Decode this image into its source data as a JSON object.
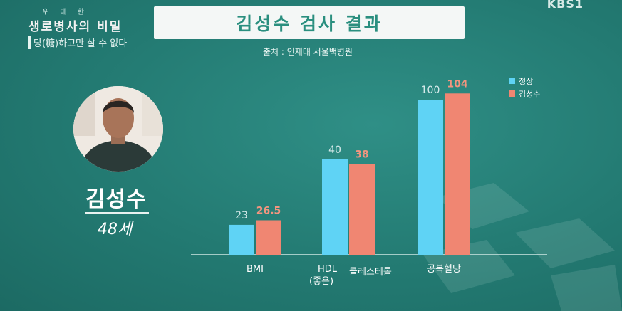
{
  "show": {
    "small_title": "위 대 한",
    "main_title": "생로병사의 비밀",
    "subtitle": "당(糖)하고만 살 수 없다"
  },
  "broadcaster": "KBS1",
  "title": "김성수 검사 결과",
  "source": "출처 : 인제대 서울백병원",
  "person": {
    "name": "김성수",
    "age": "48세"
  },
  "colors": {
    "normal": "#5fd3f5",
    "patient": "#f08672",
    "title_text": "#2a8f7f"
  },
  "chart_data": {
    "type": "bar",
    "categories": [
      "BMI",
      "HDL\n(좋은) 콜레스테롤",
      "공복혈당"
    ],
    "category_lines": [
      [
        "BMI"
      ],
      [
        "HDL",
        "(좋은)"
      ],
      [
        "공복혈당"
      ]
    ],
    "category_extra": [
      "",
      "콜레스테롤",
      ""
    ],
    "series": [
      {
        "name": "정상",
        "values": [
          23,
          40,
          100
        ],
        "labels": [
          "23",
          "40",
          "100"
        ]
      },
      {
        "name": "김성수",
        "values": [
          26.5,
          38,
          104
        ],
        "labels": [
          "26.5",
          "38",
          "104"
        ]
      }
    ],
    "legend_position": "top-right",
    "grid": false
  }
}
